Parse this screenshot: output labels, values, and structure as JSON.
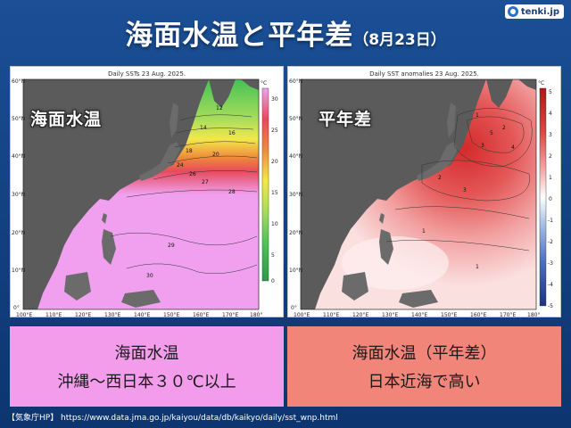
{
  "header": {
    "title": "海面水温と平年差",
    "date": "（8月23日）",
    "logo_text": "tenki.jp"
  },
  "maps": [
    {
      "overlay_label": "海面水温",
      "chart_title": "Daily SSTs 23 Aug. 2025.",
      "colorbar_unit": "°C",
      "colorbar_ticks": [
        "30",
        "25",
        "20",
        "15",
        "10",
        "5",
        "0"
      ],
      "contour_labels": [
        "12",
        "14",
        "16",
        "18",
        "20",
        "24",
        "26",
        "27",
        "28",
        "29",
        "30"
      ],
      "colors": [
        "#f0a0ee",
        "#e74a5d",
        "#f08a3a",
        "#f3e84b",
        "#a6dd5c",
        "#45c255"
      ]
    },
    {
      "overlay_label": "平年差",
      "chart_title": "Daily SST anomalies 23 Aug. 2025.",
      "colorbar_unit": "°C",
      "colorbar_ticks": [
        "5",
        "4",
        "3",
        "2",
        "1",
        "0",
        "-1",
        "-2",
        "-3",
        "-4",
        "-5"
      ],
      "contour_labels": [
        "1",
        "2",
        "3",
        "4",
        "5"
      ],
      "colors": [
        "#d42a2a",
        "#ea6b6b",
        "#f5aaaa",
        "#fbe0e0",
        "#d6e3f3",
        "#6f91c9",
        "#2d4b9c"
      ]
    }
  ],
  "axes": {
    "x_ticks": [
      "100°E",
      "110°E",
      "120°E",
      "130°E",
      "140°E",
      "150°E",
      "160°E",
      "170°E",
      "180°"
    ],
    "y_ticks": [
      "60°N",
      "50°N",
      "40°N",
      "30°N",
      "20°N",
      "10°N",
      "0°"
    ]
  },
  "info_boxes": [
    {
      "line1": "海面水温",
      "line2": "沖縄～西日本３０℃以上",
      "color": "#f39ceb"
    },
    {
      "line1": "海面水温（平年差）",
      "line2": "日本近海で高い",
      "color": "#f1857a"
    }
  ],
  "footer": {
    "source": "【気象庁HP】 https://www.data.jma.go.jp/kaiyou/data/db/kaikyo/daily/sst_wnp.html"
  }
}
